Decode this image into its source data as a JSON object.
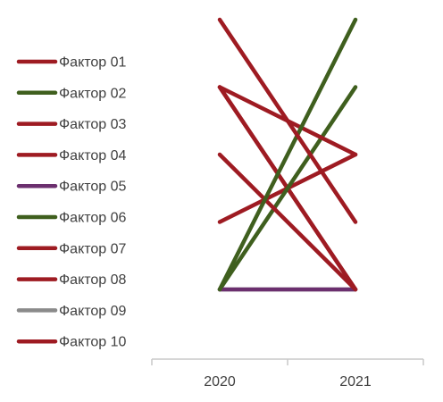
{
  "chart_data": {
    "type": "line",
    "categories": [
      "2020",
      "2021"
    ],
    "ylim": [
      0,
      4
    ],
    "grid": false,
    "legend_position": "left",
    "series": [
      {
        "name": "Фактор 01",
        "color": "#9e1b22",
        "values": [
          4,
          1
        ]
      },
      {
        "name": "Фактор 02",
        "color": "#3f5f1e",
        "values": [
          0,
          4
        ]
      },
      {
        "name": "Фактор 03",
        "color": "#9e1b22",
        "values": [
          3,
          2
        ]
      },
      {
        "name": "Фактор 04",
        "color": "#9e1b22",
        "values": [
          2,
          0
        ]
      },
      {
        "name": "Фактор 05",
        "color": "#6b2f6e",
        "values": [
          0,
          0
        ]
      },
      {
        "name": "Фактор 06",
        "color": "#3f5f1e",
        "values": [
          0,
          3
        ]
      },
      {
        "name": "Фактор 07",
        "color": "#9e1b22",
        "values": [
          1,
          2
        ]
      },
      {
        "name": "Фактор 08",
        "color": "#9e1b22",
        "values": [
          3,
          0
        ]
      },
      {
        "name": "Фактор 09",
        "color": "#8a8a8a",
        "values": [
          0,
          0
        ]
      },
      {
        "name": "Фактор 10",
        "color": "#9e1b22",
        "values": [
          3,
          0
        ]
      }
    ]
  }
}
